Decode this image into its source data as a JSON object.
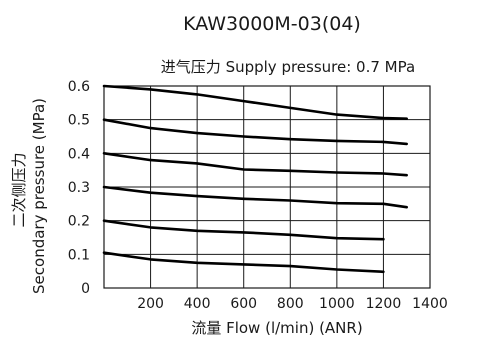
{
  "chart_data": {
    "type": "line",
    "title": "KAW3000M-03(04)",
    "subtitle": "进气压力 Supply pressure: 0.7 MPa",
    "xlabel": "流量 Flow (l/min) (ANR)",
    "ylabel_cn": "二次侧压力",
    "ylabel": "Secondary pressure (MPa)",
    "xlim": [
      0,
      1400
    ],
    "ylim": [
      0,
      0.6
    ],
    "x_ticks": [
      "200",
      "400",
      "600",
      "800",
      "1000",
      "1200",
      "1400"
    ],
    "y_ticks": [
      "0",
      "0.1",
      "0.2",
      "0.3",
      "0.4",
      "0.5",
      "0.6"
    ],
    "grid": true,
    "series": [
      {
        "x": [
          0,
          200,
          400,
          600,
          800,
          1000,
          1200,
          1300
        ],
        "y": [
          0.6,
          0.59,
          0.575,
          0.555,
          0.535,
          0.515,
          0.505,
          0.503
        ]
      },
      {
        "x": [
          0,
          200,
          400,
          600,
          800,
          1000,
          1200,
          1300
        ],
        "y": [
          0.5,
          0.475,
          0.46,
          0.45,
          0.442,
          0.437,
          0.434,
          0.428
        ]
      },
      {
        "x": [
          0,
          200,
          400,
          600,
          800,
          1000,
          1200,
          1300
        ],
        "y": [
          0.4,
          0.38,
          0.37,
          0.352,
          0.348,
          0.343,
          0.34,
          0.335
        ]
      },
      {
        "x": [
          0,
          200,
          400,
          600,
          800,
          1000,
          1200,
          1300
        ],
        "y": [
          0.3,
          0.283,
          0.273,
          0.265,
          0.26,
          0.252,
          0.25,
          0.24
        ]
      },
      {
        "x": [
          0,
          200,
          400,
          600,
          800,
          1000,
          1200
        ],
        "y": [
          0.2,
          0.18,
          0.17,
          0.165,
          0.158,
          0.148,
          0.145
        ]
      },
      {
        "x": [
          0,
          200,
          400,
          600,
          800,
          1000,
          1200
        ],
        "y": [
          0.105,
          0.085,
          0.075,
          0.07,
          0.065,
          0.055,
          0.048
        ]
      }
    ]
  }
}
